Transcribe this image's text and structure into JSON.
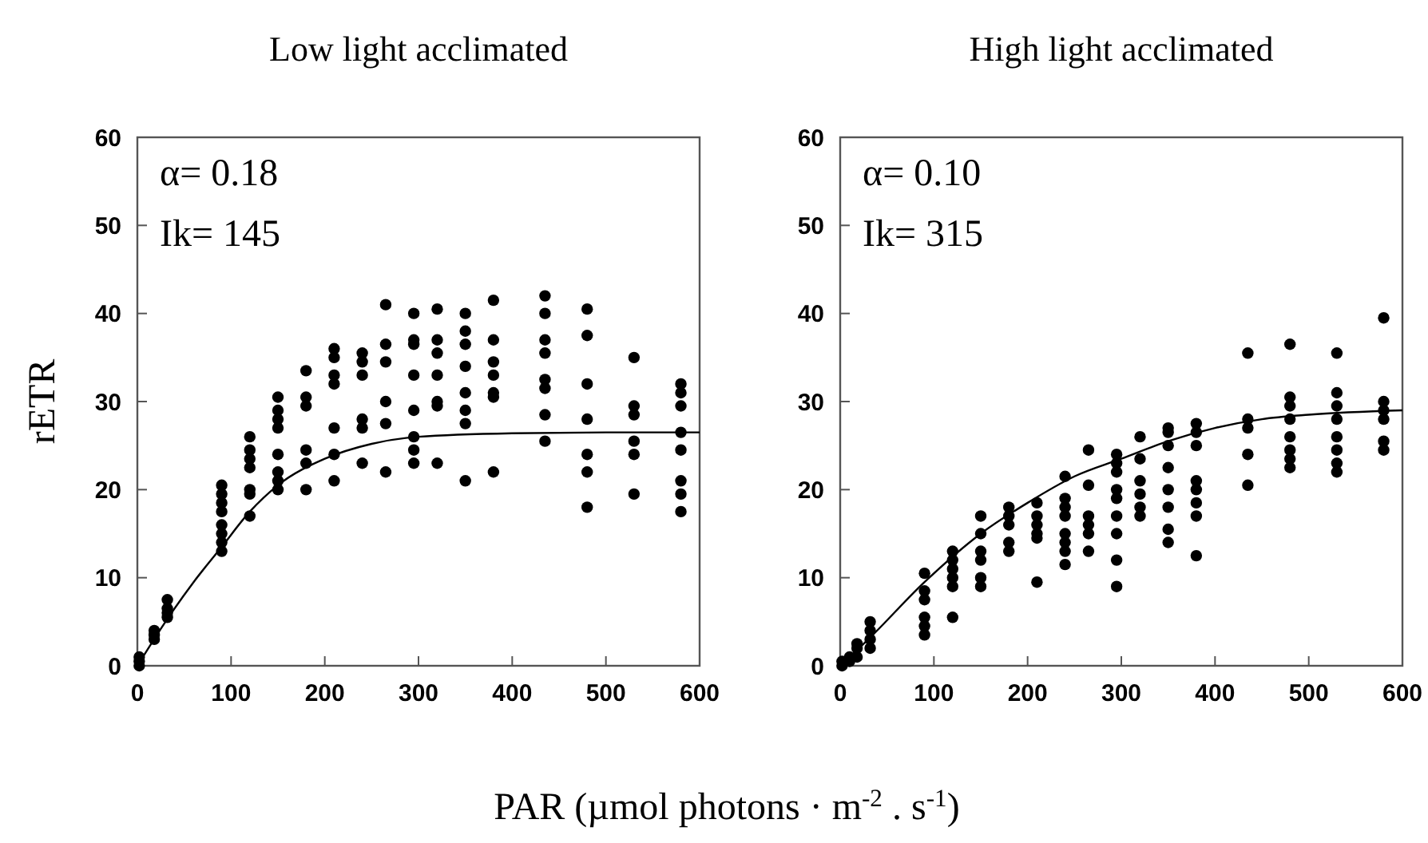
{
  "chart_data": [
    {
      "type": "scatter",
      "title": "Low light acclimated",
      "xlabel": "PAR (µmol photons · m$^{-2}$ . s$^{-1}$)",
      "ylabel": "rETR",
      "xlim": [
        0,
        600
      ],
      "xticks": [
        0,
        100,
        200,
        300,
        400,
        500,
        600
      ],
      "ylim": [
        0,
        60
      ],
      "yticks": [
        0,
        10,
        20,
        30,
        40,
        50,
        60
      ],
      "grid": false,
      "annotations": [
        "α= 0.18",
        "Ik= 145"
      ],
      "series": [
        {
          "color": "#000000",
          "marker": "circle",
          "x": [
            2,
            2,
            2,
            18,
            18,
            18,
            32,
            32,
            32,
            32,
            90,
            90,
            90,
            90,
            90,
            90,
            90,
            90,
            120,
            120,
            120,
            120,
            120,
            120,
            120,
            150,
            150,
            150,
            150,
            150,
            150,
            150,
            150,
            180,
            180,
            180,
            180,
            180,
            180,
            210,
            210,
            210,
            210,
            210,
            210,
            210,
            240,
            240,
            240,
            240,
            240,
            240,
            265,
            265,
            265,
            265,
            265,
            265,
            295,
            295,
            295,
            295,
            295,
            295,
            295,
            295,
            320,
            320,
            320,
            320,
            320,
            320,
            320,
            350,
            350,
            350,
            350,
            350,
            350,
            350,
            350,
            380,
            380,
            380,
            380,
            380,
            380,
            380,
            435,
            435,
            435,
            435,
            435,
            435,
            435,
            435,
            480,
            480,
            480,
            480,
            480,
            480,
            480,
            530,
            530,
            530,
            530,
            530,
            530,
            580,
            580,
            580,
            580,
            580,
            580,
            580,
            580
          ],
          "values": [
            0,
            0.5,
            1,
            3,
            3.5,
            4,
            5.5,
            6,
            6.5,
            7.5,
            13,
            14,
            15,
            16,
            17.5,
            18.5,
            19.5,
            20.5,
            17,
            19.5,
            20,
            22.5,
            23.5,
            24.5,
            26,
            20,
            21,
            22,
            24,
            27,
            28,
            29,
            30.5,
            20,
            23,
            24.5,
            29.5,
            30.5,
            33.5,
            21,
            24,
            27,
            32,
            33,
            35,
            36,
            23,
            27,
            28,
            33,
            34.5,
            35.5,
            22,
            27.5,
            30,
            34.5,
            36.5,
            41,
            23,
            24.5,
            26,
            29,
            33,
            36.5,
            37,
            40,
            23,
            29.5,
            30,
            33,
            35.5,
            37,
            40.5,
            21,
            27.5,
            29,
            31,
            34,
            36.5,
            38,
            40,
            22,
            30.5,
            31,
            33,
            34.5,
            37,
            41.5,
            25.5,
            28.5,
            31.5,
            32.5,
            35.5,
            37,
            40,
            42,
            18,
            22,
            24,
            28,
            32,
            37.5,
            40.5,
            19.5,
            24,
            25.5,
            28.5,
            29.5,
            35,
            17.5,
            19.5,
            21,
            24.5,
            26.5,
            29.5,
            31,
            32
          ]
        },
        {
          "type": "line",
          "color": "#000000",
          "marker": "none",
          "line_style": "solid",
          "x": [
            0,
            30,
            60,
            90,
            120,
            150,
            200,
            250,
            300,
            400,
            500,
            600
          ],
          "values": [
            0,
            5,
            9.5,
            13.5,
            17.5,
            20.5,
            23.5,
            25.2,
            26,
            26.4,
            26.5,
            26.5
          ]
        }
      ]
    },
    {
      "type": "scatter",
      "title": "High light acclimated",
      "xlim": [
        0,
        600
      ],
      "xticks": [
        0,
        100,
        200,
        300,
        400,
        500,
        600
      ],
      "ylim": [
        0,
        60
      ],
      "yticks": [
        0,
        10,
        20,
        30,
        40,
        50,
        60
      ],
      "grid": false,
      "annotations": [
        "α= 0.10",
        "Ik= 315"
      ],
      "series": [
        {
          "color": "#000000",
          "marker": "circle",
          "x": [
            2,
            2,
            10,
            10,
            18,
            18,
            18,
            32,
            32,
            32,
            32,
            90,
            90,
            90,
            90,
            90,
            90,
            120,
            120,
            120,
            120,
            120,
            120,
            150,
            150,
            150,
            150,
            150,
            150,
            180,
            180,
            180,
            180,
            180,
            210,
            210,
            210,
            210,
            210,
            210,
            240,
            240,
            240,
            240,
            240,
            240,
            240,
            240,
            265,
            265,
            265,
            265,
            265,
            265,
            295,
            295,
            295,
            295,
            295,
            295,
            295,
            295,
            295,
            320,
            320,
            320,
            320,
            320,
            320,
            350,
            350,
            350,
            350,
            350,
            350,
            350,
            350,
            380,
            380,
            380,
            380,
            380,
            380,
            380,
            380,
            435,
            435,
            435,
            435,
            435,
            480,
            480,
            480,
            480,
            480,
            480,
            480,
            480,
            530,
            530,
            530,
            530,
            530,
            530,
            530,
            530,
            580,
            580,
            580,
            580,
            580,
            580
          ],
          "values": [
            0,
            0.5,
            0.5,
            1,
            1,
            2,
            2.5,
            2,
            3,
            4,
            5,
            3.5,
            4.5,
            5.5,
            7.5,
            8.5,
            10.5,
            5.5,
            9,
            10,
            11,
            12,
            13,
            9,
            10,
            12,
            13,
            15,
            17,
            13,
            14,
            16,
            17,
            18,
            9.5,
            14.5,
            15,
            16,
            17,
            18.5,
            11.5,
            13,
            14,
            15,
            17,
            18,
            19,
            21.5,
            13,
            15,
            16,
            17,
            20.5,
            24.5,
            9,
            12,
            15,
            17,
            19,
            20,
            22,
            23,
            24,
            17,
            18,
            19.5,
            21,
            23.5,
            26,
            14,
            15.5,
            18,
            20,
            22.5,
            25,
            26.5,
            27,
            12.5,
            17,
            18.5,
            20,
            21,
            25,
            26.5,
            27.5,
            20.5,
            24,
            27,
            28,
            35.5,
            22.5,
            23.5,
            24.5,
            26,
            28,
            29.5,
            30.5,
            36.5,
            22,
            23,
            24.5,
            26,
            28,
            29.5,
            31,
            35.5,
            24.5,
            25.5,
            28,
            29,
            30,
            39.5
          ]
        },
        {
          "type": "line",
          "color": "#000000",
          "marker": "none",
          "line_style": "solid",
          "x": [
            0,
            30,
            90,
            150,
            200,
            250,
            300,
            350,
            400,
            450,
            500,
            600
          ],
          "values": [
            0,
            3,
            9.5,
            15,
            18.5,
            21.5,
            23.5,
            25.5,
            27,
            28,
            28.5,
            29
          ]
        }
      ]
    }
  ]
}
